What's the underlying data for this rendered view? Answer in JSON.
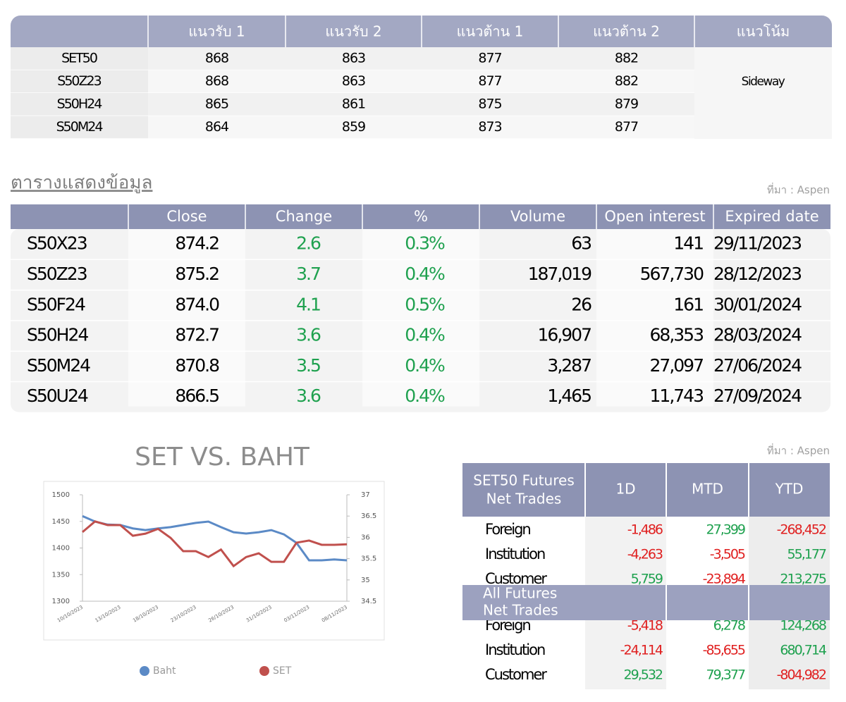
{
  "support_table": {
    "headers": [
      "แนวรับ 1",
      "แนวรับ 2",
      "แนวต้าน 1",
      "แนวต้าน 2",
      "แนวโน้ม"
    ],
    "rows": [
      {
        "name": "SET50",
        "values": [
          "868",
          "863",
          "877",
          "882"
        ]
      },
      {
        "name": "S50Z23",
        "values": [
          "868",
          "863",
          "877",
          "882"
        ]
      },
      {
        "name": "S50H24",
        "values": [
          "865",
          "861",
          "875",
          "879"
        ]
      },
      {
        "name": "S50M24",
        "values": [
          "864",
          "859",
          "873",
          "877"
        ]
      }
    ],
    "trend": "Sideway"
  },
  "data_table": {
    "title": "ตารางแสดงข้อมูล",
    "source": "ที่มา : Aspen",
    "headers": [
      "Close",
      "Change",
      "%",
      "Volume",
      "Open interest",
      "Expired date"
    ],
    "rows": [
      [
        "S50X23",
        "874.2",
        "2.6",
        "0.3%",
        "63",
        "141",
        "29/11/2023"
      ],
      [
        "S50Z23",
        "875.2",
        "3.7",
        "0.4%",
        "187,019",
        "567,730",
        "28/12/2023"
      ],
      [
        "S50F24",
        "874.0",
        "4.1",
        "0.5%",
        "26",
        "161",
        "30/01/2024"
      ],
      [
        "S50H24",
        "872.7",
        "3.6",
        "0.4%",
        "16,907",
        "68,353",
        "28/03/2024"
      ],
      [
        "S50M24",
        "870.8",
        "3.5",
        "0.4%",
        "3,287",
        "27,097",
        "27/06/2024"
      ],
      [
        "S50U24",
        "866.5",
        "3.6",
        "0.4%",
        "1,465",
        "11,743",
        "27/09/2024"
      ]
    ]
  },
  "net_trades": {
    "source": "ที่มา : Aspen",
    "headers": [
      "1D",
      "MTD",
      "YTD"
    ],
    "sections": [
      {
        "title_lines": [
          "SET50 Futures",
          "Net Trades"
        ],
        "rows": [
          [
            "Foreign",
            "-1,486",
            "27,399",
            "-268,452"
          ],
          [
            "Institution",
            "-4,263",
            "-3,505",
            "55,177"
          ],
          [
            "Customer",
            "5,759",
            "-23,894",
            "213,275"
          ]
        ]
      },
      {
        "title_lines": [
          "All Futures",
          "Net Trades"
        ],
        "rows": [
          [
            "Foreign",
            "-5,418",
            "6,278",
            "124,268"
          ],
          [
            "Institution",
            "-24,114",
            "-85,655",
            "680,714"
          ],
          [
            "Customer",
            "29,532",
            "79,377",
            "-804,982"
          ]
        ]
      }
    ]
  },
  "chart_data": {
    "type": "line",
    "title": "SET VS. BAHT",
    "categories": [
      "10/10/2023",
      null,
      null,
      "13/10/2023",
      null,
      null,
      "18/10/2023",
      null,
      null,
      "23/10/2023",
      null,
      null,
      "26/10/2023",
      null,
      null,
      "31/10/2023",
      null,
      null,
      "03/11/2023",
      null,
      null,
      "08/11/2023"
    ],
    "series": [
      {
        "name": "Baht",
        "color": "#5b8ac6",
        "axis": "y2",
        "values": [
          36.5,
          36.37,
          36.3,
          36.29,
          36.21,
          36.17,
          36.21,
          36.24,
          36.29,
          36.34,
          36.37,
          36.24,
          36.12,
          36.09,
          36.12,
          36.17,
          36.07,
          35.87,
          35.46,
          35.46,
          35.48,
          35.46
        ]
      },
      {
        "name": "SET",
        "color": "#c0504d",
        "values": [
          1430,
          1450,
          1443,
          1443,
          1423,
          1427,
          1436,
          1419,
          1394,
          1394,
          1383,
          1397,
          1366,
          1383,
          1390,
          1374,
          1374,
          1410,
          1414,
          1406,
          1406,
          1407
        ]
      }
    ],
    "ylim": [
      1300,
      1500
    ],
    "yticks": [
      1300,
      1350,
      1400,
      1450,
      1500
    ],
    "y2lim": [
      34.5,
      37
    ],
    "y2ticks": [
      34.5,
      35,
      35.5,
      36,
      36.5,
      37
    ]
  }
}
